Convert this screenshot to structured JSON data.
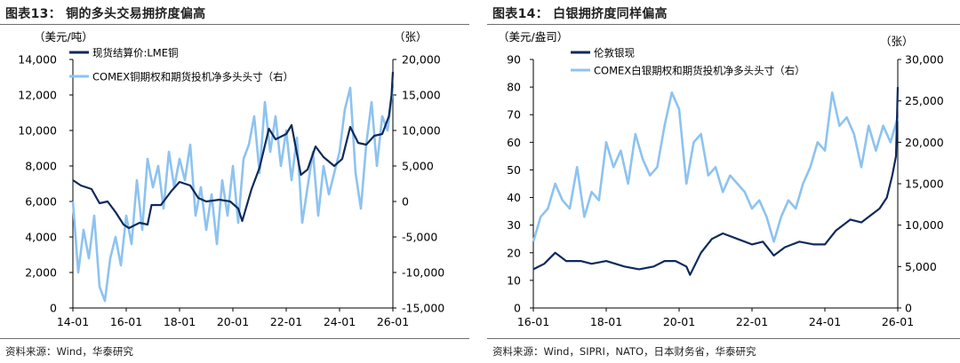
{
  "panels": [
    {
      "title": "图表13： 铜的多头交易拥挤度偏高",
      "source": "资料来源：Wind，华泰研究"
    },
    {
      "title": "图表14： 白银拥挤度同样偏高",
      "source": "资料来源：Wind，SIPRI，NATO，日本财务省，华泰研究"
    }
  ],
  "colors": {
    "dark": "#0e2a5a",
    "light": "#8dc3f0",
    "axis": "#000000"
  },
  "chart_data": [
    {
      "type": "line",
      "title": "铜的多头交易拥挤度偏高",
      "y_left_unit": "（美元/吨）",
      "y_right_unit": "（张）",
      "x_ticks": [
        "14-01",
        "16-01",
        "18-01",
        "20-01",
        "22-01",
        "24-01",
        "26-01"
      ],
      "x_range": [
        2014.0,
        2026.0
      ],
      "y_left": {
        "range": [
          0,
          14000
        ],
        "ticks": [
          "0",
          "2,000",
          "4,000",
          "6,000",
          "8,000",
          "10,000",
          "12,000",
          "14,000"
        ]
      },
      "y_right": {
        "range": [
          -15000,
          20000
        ],
        "ticks": [
          "-15,000",
          "-10,000",
          "-5,000",
          "0",
          "5,000",
          "10,000",
          "15,000",
          "20,000"
        ]
      },
      "series": [
        {
          "name": "现货结算价:LME铜",
          "axis": "left",
          "color_key": "dark",
          "x": [
            2014.0,
            2014.3,
            2014.7,
            2015.0,
            2015.3,
            2015.6,
            2015.9,
            2016.1,
            2016.5,
            2016.8,
            2016.95,
            2017.3,
            2017.7,
            2018.0,
            2018.4,
            2018.7,
            2019.0,
            2019.5,
            2019.9,
            2020.2,
            2020.35,
            2020.7,
            2021.0,
            2021.35,
            2021.6,
            2022.0,
            2022.2,
            2022.55,
            2022.8,
            2023.1,
            2023.4,
            2023.8,
            2024.1,
            2024.4,
            2024.7,
            2025.0,
            2025.3,
            2025.6,
            2025.85,
            2025.95,
            2026.0
          ],
          "y": [
            7200,
            6900,
            6700,
            5900,
            6000,
            5400,
            4700,
            4500,
            4800,
            4700,
            5800,
            5800,
            6600,
            7100,
            6900,
            6200,
            6000,
            6100,
            6000,
            5600,
            4900,
            6700,
            7900,
            10100,
            9500,
            9800,
            10300,
            7500,
            7800,
            9100,
            8500,
            8000,
            8400,
            10200,
            9300,
            9200,
            9700,
            9800,
            10800,
            12000,
            13300
          ]
        },
        {
          "name": "COMEX铜期权和期货投机净多头头寸（右）",
          "axis": "right",
          "color_key": "light",
          "x": [
            2014.0,
            2014.2,
            2014.4,
            2014.6,
            2014.8,
            2015.0,
            2015.2,
            2015.4,
            2015.6,
            2015.8,
            2016.0,
            2016.2,
            2016.4,
            2016.6,
            2016.8,
            2017.0,
            2017.2,
            2017.4,
            2017.6,
            2017.8,
            2018.0,
            2018.2,
            2018.4,
            2018.6,
            2018.8,
            2019.0,
            2019.2,
            2019.4,
            2019.6,
            2019.8,
            2020.0,
            2020.2,
            2020.4,
            2020.6,
            2020.8,
            2021.0,
            2021.2,
            2021.4,
            2021.6,
            2021.8,
            2022.0,
            2022.2,
            2022.4,
            2022.6,
            2022.8,
            2023.0,
            2023.2,
            2023.4,
            2023.6,
            2023.8,
            2024.0,
            2024.2,
            2024.4,
            2024.6,
            2024.8,
            2025.0,
            2025.2,
            2025.4,
            2025.6,
            2025.8,
            2026.0
          ],
          "y": [
            0,
            -10000,
            -4000,
            -8000,
            -2000,
            -12000,
            -14000,
            -8000,
            -5000,
            -9000,
            -2000,
            -6000,
            3000,
            -4000,
            6000,
            2000,
            5000,
            -1000,
            7000,
            2000,
            6000,
            3000,
            8000,
            -2000,
            2000,
            -4000,
            1000,
            -6000,
            3000,
            -2000,
            5000,
            -3000,
            6000,
            8000,
            12000,
            4000,
            14000,
            7000,
            12000,
            5000,
            10000,
            3000,
            9000,
            -3000,
            2000,
            7000,
            -2000,
            5000,
            1000,
            4000,
            7000,
            13000,
            16000,
            4000,
            -1000,
            8000,
            14000,
            5000,
            12000,
            10000,
            16000
          ]
        }
      ]
    },
    {
      "type": "line",
      "title": "白银拥挤度同样偏高",
      "y_left_unit": "（美元/盎司）",
      "y_right_unit": "（张）",
      "x_ticks": [
        "16-01",
        "18-01",
        "20-01",
        "22-01",
        "24-01",
        "26-01"
      ],
      "x_range": [
        2016.0,
        2026.0
      ],
      "y_left": {
        "range": [
          0,
          90
        ],
        "ticks": [
          "0",
          "10",
          "20",
          "30",
          "40",
          "50",
          "60",
          "70",
          "80",
          "90"
        ]
      },
      "y_right": {
        "range": [
          0,
          30000
        ],
        "ticks": [
          "0",
          "5,000",
          "10,000",
          "15,000",
          "20,000",
          "25,000",
          "30,000"
        ]
      },
      "series": [
        {
          "name": "伦敦银现",
          "axis": "left",
          "color_key": "dark",
          "x": [
            2016.0,
            2016.3,
            2016.6,
            2016.9,
            2017.3,
            2017.6,
            2018.0,
            2018.5,
            2018.9,
            2019.3,
            2019.6,
            2019.9,
            2020.2,
            2020.3,
            2020.6,
            2020.9,
            2021.2,
            2021.6,
            2022.0,
            2022.3,
            2022.6,
            2022.9,
            2023.3,
            2023.7,
            2024.0,
            2024.3,
            2024.7,
            2025.0,
            2025.3,
            2025.5,
            2025.7,
            2025.85,
            2025.95,
            2026.0
          ],
          "y": [
            14,
            16,
            20,
            17,
            17,
            16,
            17,
            15,
            14,
            15,
            17,
            17,
            15,
            12,
            20,
            25,
            27,
            25,
            23,
            24,
            19,
            22,
            24,
            23,
            23,
            28,
            32,
            31,
            34,
            36,
            40,
            48,
            55,
            80
          ]
        },
        {
          "name": "COMEX白银期权和期货投机净多头头寸（右）",
          "axis": "right",
          "color_key": "light",
          "x": [
            2016.0,
            2016.2,
            2016.4,
            2016.6,
            2016.8,
            2017.0,
            2017.2,
            2017.4,
            2017.6,
            2017.8,
            2018.0,
            2018.2,
            2018.4,
            2018.6,
            2018.8,
            2019.0,
            2019.2,
            2019.4,
            2019.6,
            2019.8,
            2020.0,
            2020.2,
            2020.4,
            2020.6,
            2020.8,
            2021.0,
            2021.2,
            2021.4,
            2021.6,
            2021.8,
            2022.0,
            2022.2,
            2022.4,
            2022.6,
            2022.8,
            2023.0,
            2023.2,
            2023.4,
            2023.6,
            2023.8,
            2024.0,
            2024.2,
            2024.4,
            2024.6,
            2024.8,
            2025.0,
            2025.2,
            2025.4,
            2025.6,
            2025.8,
            2026.0
          ],
          "y": [
            8000,
            11000,
            12000,
            15000,
            13000,
            12000,
            17000,
            11000,
            14000,
            13000,
            20000,
            17000,
            19000,
            15000,
            21000,
            18000,
            16000,
            17000,
            22000,
            26000,
            24000,
            15000,
            20000,
            21000,
            16000,
            17000,
            14000,
            16000,
            15000,
            14000,
            12000,
            13000,
            11000,
            8000,
            11000,
            13000,
            12000,
            15000,
            17000,
            20000,
            19000,
            26000,
            22000,
            23000,
            21000,
            17000,
            22000,
            19000,
            22000,
            20000,
            23000
          ]
        }
      ]
    }
  ]
}
